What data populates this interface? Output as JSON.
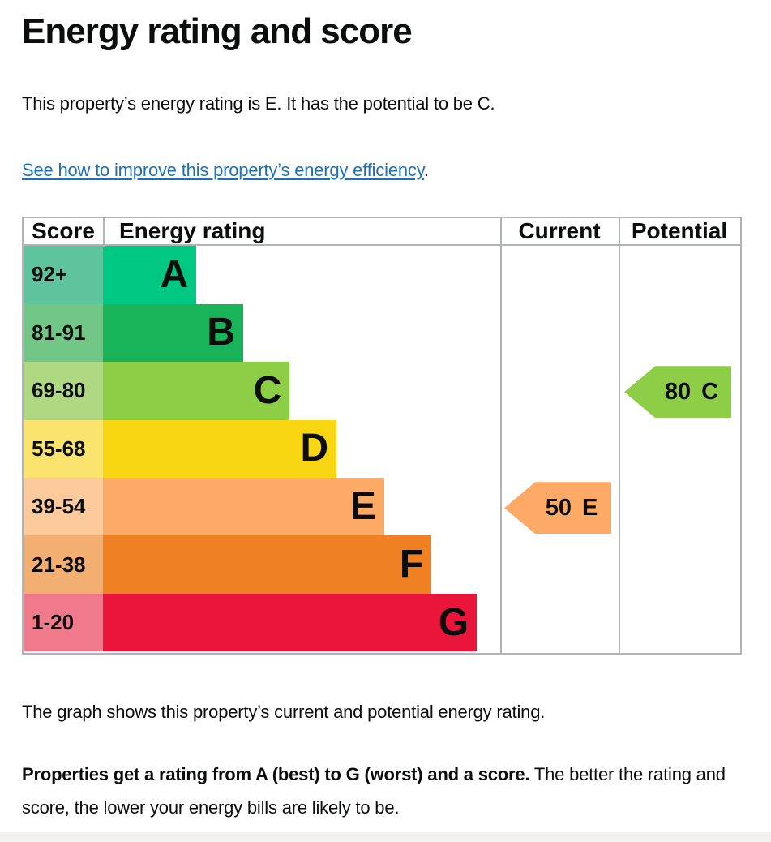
{
  "page": {
    "title": "Energy rating and score",
    "intro": "This property’s energy rating is E. It has the potential to be C.",
    "improve_link": "See how to improve this property’s energy efficiency",
    "improve_link_suffix": ".",
    "graph_caption": "The graph shows this property’s current and potential energy rating.",
    "explain_bold": "Properties get a rating from A (best) to G (worst) and a score.",
    "explain_rest": " The better the rating and score, the lower your energy bills are likely to be."
  },
  "chart_data": {
    "type": "bar",
    "subtype": "uk-epc-energy-rating-graph",
    "title": "Energy rating and score",
    "columns": [
      "Score",
      "Energy rating",
      "Current",
      "Potential"
    ],
    "bands": [
      {
        "letter": "A",
        "score_range": "92+",
        "color": "#00c781",
        "tint": "#5ec49e",
        "bar_width_pct": 23.5
      },
      {
        "letter": "B",
        "score_range": "81-91",
        "color": "#19b459",
        "tint": "#72c686",
        "bar_width_pct": 35.3
      },
      {
        "letter": "C",
        "score_range": "69-80",
        "color": "#8dce46",
        "tint": "#aed881",
        "bar_width_pct": 47.0
      },
      {
        "letter": "D",
        "score_range": "55-68",
        "color": "#f9d612",
        "tint": "#fae46d",
        "bar_width_pct": 58.8
      },
      {
        "letter": "E",
        "score_range": "39-54",
        "color": "#fcaa65",
        "tint": "#fcca9b",
        "bar_width_pct": 70.8
      },
      {
        "letter": "F",
        "score_range": "21-38",
        "color": "#ef8023",
        "tint": "#f3ae72",
        "bar_width_pct": 82.7
      },
      {
        "letter": "G",
        "score_range": "1-20",
        "color": "#e9153b",
        "tint": "#f0798b",
        "bar_width_pct": 94.1
      }
    ],
    "current": {
      "score": "50",
      "letter": "E",
      "band_index": 4,
      "color": "#fcaa65"
    },
    "potential": {
      "score": "80",
      "letter": "C",
      "band_index": 2,
      "color": "#8dce46"
    },
    "layout": {
      "grid": false,
      "border_color": "#b1b4b6",
      "link_color": "#1d70b8",
      "text_color": "#0b0c0c"
    }
  }
}
